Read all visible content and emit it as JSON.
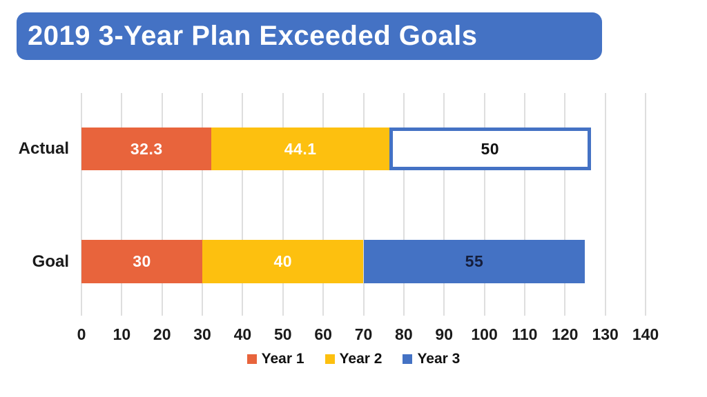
{
  "title": "2019 3-Year Plan Exceeded Goals",
  "colors": {
    "banner_bg": "#4472C4",
    "title_text": "#FFFFFF",
    "year1": "#E8643C",
    "year2": "#FDC00F",
    "year3": "#4472C4",
    "actual_year3_fill": "#FFFFFF",
    "actual_year3_border": "#4472C4",
    "gridline": "#DEDEDE",
    "axis_text": "#1A1A1A"
  },
  "chart_data": {
    "type": "bar",
    "orientation": "horizontal",
    "stacked": true,
    "title": "2019 3-Year Plan Exceeded Goals",
    "categories": [
      "Actual",
      "Goal"
    ],
    "series": [
      {
        "name": "Year 1",
        "values": [
          32.3,
          30
        ],
        "labels": [
          "32.3",
          "30"
        ],
        "fills": [
          "#E8643C",
          "#E8643C"
        ],
        "borders": [
          null,
          null
        ],
        "label_colors": [
          "#FFFFFF",
          "#FFFFFF"
        ]
      },
      {
        "name": "Year 2",
        "values": [
          44.1,
          40
        ],
        "labels": [
          "44.1",
          "40"
        ],
        "fills": [
          "#FDC00F",
          "#FDC00F"
        ],
        "borders": [
          null,
          null
        ],
        "label_colors": [
          "#FFFFFF",
          "#FFFFFF"
        ]
      },
      {
        "name": "Year 3",
        "values": [
          50,
          55
        ],
        "labels": [
          "50",
          "55"
        ],
        "fills": [
          "#FFFFFF",
          "#4472C4"
        ],
        "borders": [
          "#4472C4",
          null
        ],
        "label_colors": [
          "#111111",
          "#151E3C"
        ]
      }
    ],
    "totals": {
      "Actual": 126.4,
      "Goal": 125
    },
    "xlim": [
      0,
      140
    ],
    "xticks": [
      0,
      10,
      20,
      30,
      40,
      50,
      60,
      70,
      80,
      90,
      100,
      110,
      120,
      130,
      140
    ],
    "grid": true,
    "legend_position": "bottom",
    "note": "Actual Year 3 segment rendered as white fill with blue outline"
  },
  "legend": {
    "items": [
      {
        "label": "Year 1",
        "color": "#E8643C"
      },
      {
        "label": "Year 2",
        "color": "#FDC00F"
      },
      {
        "label": "Year 3",
        "color": "#4472C4"
      }
    ]
  }
}
